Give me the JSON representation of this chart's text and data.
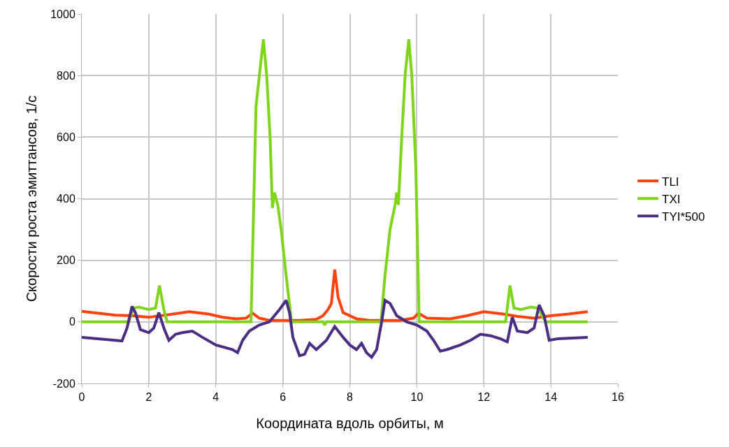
{
  "chart_data": {
    "type": "line",
    "xlabel": "Координата вдоль орбиты, м",
    "ylabel": "Скорости роста эмиттансов, 1/с",
    "xlim": [
      0,
      16
    ],
    "xticks": [
      0,
      2,
      4,
      6,
      8,
      10,
      12,
      14,
      16
    ],
    "ylim": [
      -200,
      1000
    ],
    "yticks": [
      -200,
      0,
      200,
      400,
      600,
      800,
      1000
    ],
    "grid": true,
    "legend": "right",
    "marker": "none",
    "line_style": "solid",
    "series": [
      {
        "name": "TLI",
        "color": "#ff420e",
        "x": [
          0,
          0.5,
          1,
          1.5,
          2,
          2.5,
          3.2,
          3.8,
          4.2,
          4.6,
          4.9,
          5.1,
          5.3,
          5.6,
          6.5,
          7,
          7.2,
          7.35,
          7.45,
          7.55,
          7.65,
          7.8,
          8.2,
          8.6,
          9.5,
          9.9,
          10.05,
          10.3,
          11,
          11.5,
          12,
          12.6,
          13,
          13.5,
          14,
          14.5,
          15.1
        ],
        "values": [
          34,
          28,
          22,
          20,
          15,
          22,
          33,
          25,
          15,
          10,
          12,
          28,
          12,
          5,
          5,
          8,
          20,
          40,
          60,
          170,
          80,
          30,
          10,
          5,
          5,
          12,
          28,
          12,
          10,
          20,
          33,
          25,
          18,
          12,
          20,
          25,
          33
        ]
      },
      {
        "name": "TXI",
        "color": "#7fd41c",
        "x": [
          0,
          1.4,
          1.55,
          1.7,
          2,
          2.2,
          2.32,
          2.45,
          2.55,
          5.05,
          5.2,
          5.3,
          5.42,
          5.52,
          5.62,
          5.69,
          5.75,
          5.85,
          5.95,
          6.1,
          6.26,
          7.2,
          7.25,
          7.3,
          8.93,
          9.05,
          9.2,
          9.35,
          9.4,
          9.45,
          9.55,
          9.65,
          9.76,
          9.85,
          9.97,
          10.07,
          12.65,
          12.78,
          12.9,
          13.1,
          13.4,
          13.6,
          13.85,
          15.1
        ],
        "values": [
          0,
          0,
          45,
          48,
          40,
          45,
          118,
          40,
          0,
          0,
          700,
          800,
          918,
          800,
          600,
          370,
          420,
          380,
          300,
          150,
          0,
          0,
          -10,
          0,
          0,
          150,
          300,
          380,
          420,
          380,
          600,
          800,
          918,
          800,
          500,
          0,
          0,
          118,
          45,
          40,
          48,
          45,
          0,
          0
        ]
      },
      {
        "name": "TYI*500",
        "color": "#4b2e83",
        "x": [
          0,
          1,
          1.2,
          1.35,
          1.5,
          1.6,
          1.75,
          2,
          2.15,
          2.3,
          2.45,
          2.6,
          2.8,
          3,
          3.3,
          3.6,
          4,
          4.5,
          4.65,
          4.8,
          5,
          5.3,
          5.6,
          5.9,
          6.1,
          6.2,
          6.3,
          6.5,
          6.65,
          6.8,
          6.9,
          7,
          7.3,
          7.55,
          7.8,
          8,
          8.2,
          8.35,
          8.5,
          8.65,
          8.8,
          8.95,
          9.05,
          9.2,
          9.4,
          9.7,
          10,
          10.3,
          10.5,
          10.7,
          10.9,
          11.3,
          11.6,
          11.9,
          12.2,
          12.5,
          12.7,
          12.85,
          13,
          13.3,
          13.5,
          13.65,
          13.8,
          13.95,
          14.2,
          15.1
        ],
        "values": [
          -50,
          -60,
          -62,
          -20,
          50,
          30,
          -25,
          -35,
          -20,
          30,
          -20,
          -60,
          -40,
          -35,
          -30,
          -50,
          -75,
          -90,
          -100,
          -60,
          -30,
          -10,
          0,
          40,
          70,
          30,
          -50,
          -110,
          -105,
          -70,
          -80,
          -90,
          -60,
          -15,
          -50,
          -75,
          -90,
          -70,
          -100,
          -115,
          -90,
          0,
          70,
          60,
          20,
          0,
          -10,
          -30,
          -60,
          -95,
          -90,
          -75,
          -60,
          -40,
          -45,
          -55,
          -65,
          15,
          -30,
          -35,
          -20,
          55,
          20,
          -60,
          -55,
          -50
        ]
      }
    ]
  }
}
